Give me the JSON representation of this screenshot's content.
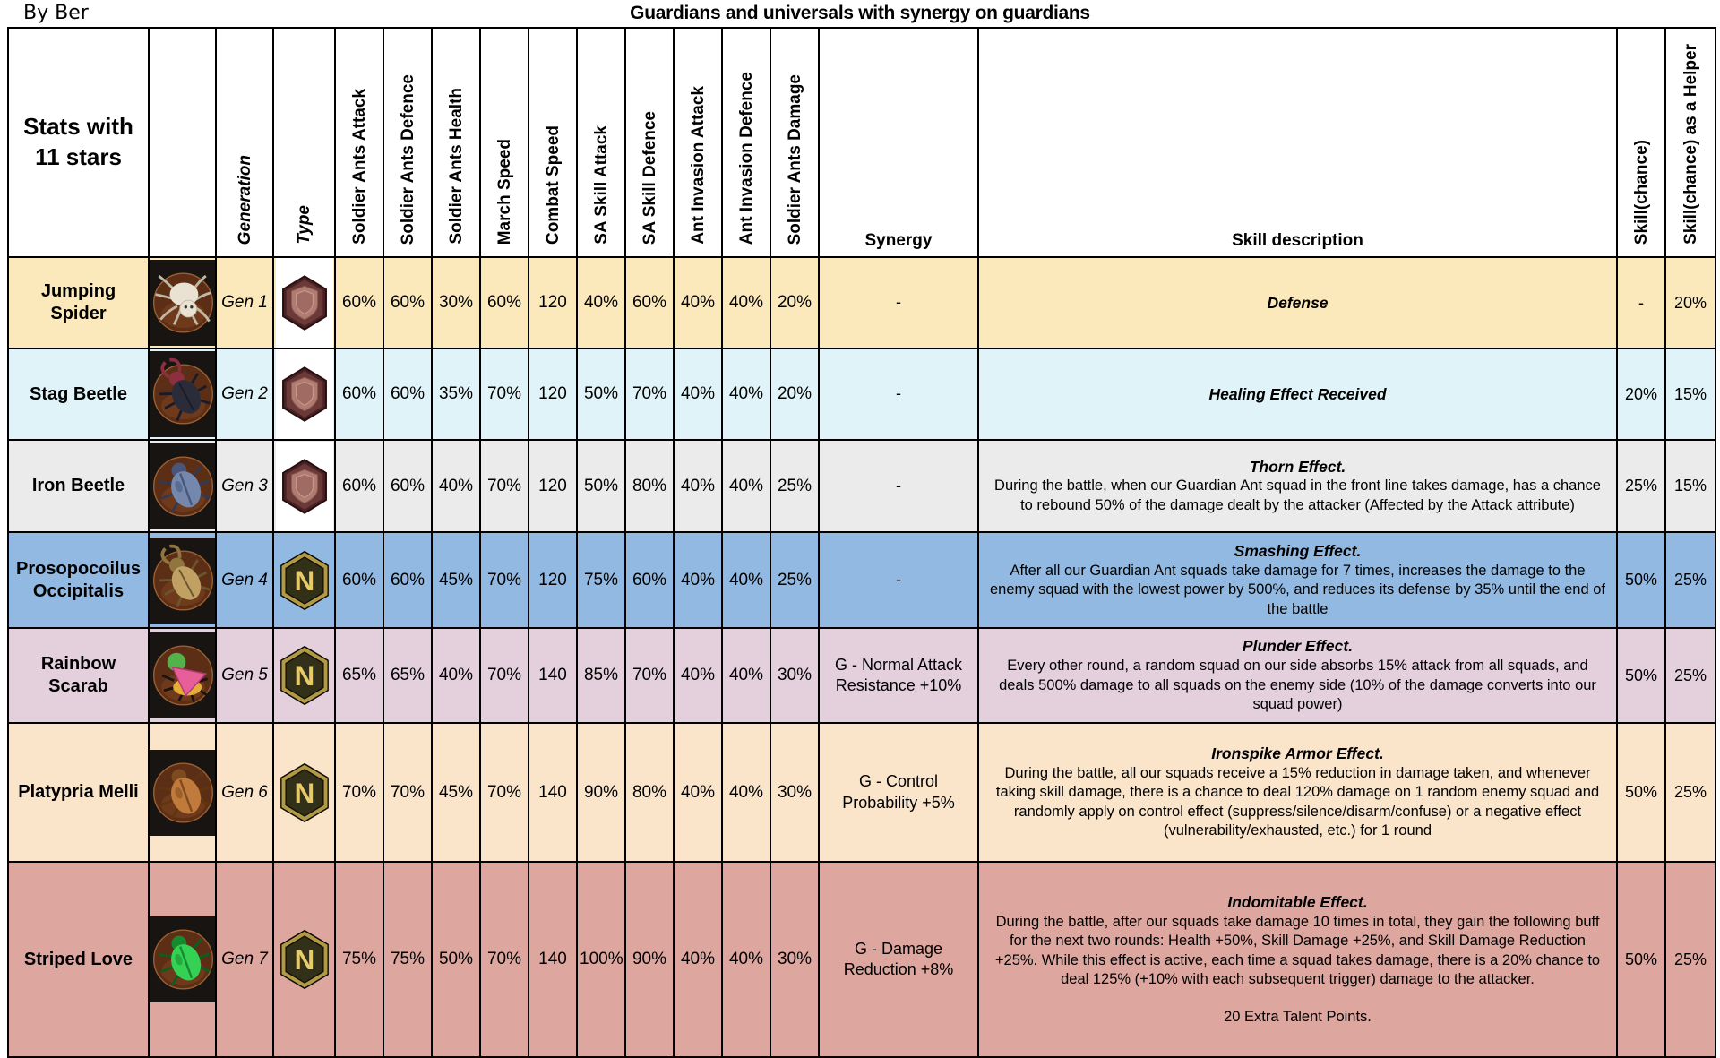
{
  "header": {
    "author": "By Ber",
    "title": "Guardians and universals with synergy on guardians"
  },
  "table": {
    "columns": [
      {
        "key": "name",
        "label": "Stats with\n11 stars",
        "style": "corner"
      },
      {
        "key": "image",
        "label": "",
        "style": "blank"
      },
      {
        "key": "generation",
        "label": "Generation",
        "style": "rotated-italic"
      },
      {
        "key": "type",
        "label": "Type",
        "style": "rotated-italic"
      },
      {
        "key": "sa_attack",
        "label": "Soldier Ants Attack",
        "style": "rotated"
      },
      {
        "key": "sa_defence",
        "label": "Soldier Ants Defence",
        "style": "rotated"
      },
      {
        "key": "sa_health",
        "label": "Soldier Ants Health",
        "style": "rotated"
      },
      {
        "key": "march_speed",
        "label": "March Speed",
        "style": "rotated"
      },
      {
        "key": "combat_speed",
        "label": "Combat Speed",
        "style": "rotated"
      },
      {
        "key": "sa_skill_attack",
        "label": "SA Skill Attack",
        "style": "rotated"
      },
      {
        "key": "sa_skill_defence",
        "label": "SA Skill Defence",
        "style": "rotated"
      },
      {
        "key": "ant_invasion_attack",
        "label": "Ant Invasion Attack",
        "style": "rotated"
      },
      {
        "key": "ant_invasion_defence",
        "label": "Ant Invasion Defence",
        "style": "rotated"
      },
      {
        "key": "sa_damage",
        "label": "Soldier Ants Damage",
        "style": "rotated"
      },
      {
        "key": "synergy",
        "label": "Synergy",
        "style": "bottom"
      },
      {
        "key": "skill_description",
        "label": "Skill description",
        "style": "bottom"
      },
      {
        "key": "skill_chance",
        "label": "Skill(chance)",
        "style": "rotated"
      },
      {
        "key": "skill_chance_helper",
        "label": "Skill(chance) as a Helper",
        "style": "rotated"
      }
    ],
    "rows": [
      {
        "name": "Jumping\nSpider",
        "generation": "Gen 1",
        "type": "Guard",
        "stats": {
          "sa_attack": "60%",
          "sa_defence": "60%",
          "sa_health": "30%",
          "march_speed": "60%",
          "combat_speed": "120",
          "sa_skill_attack": "40%",
          "sa_skill_defence": "60%",
          "ant_invasion_attack": "40%",
          "ant_invasion_defence": "40%",
          "sa_damage": "20%"
        },
        "synergy": "-",
        "skill_title": "Defense",
        "skill_body": "",
        "skill_footer": "",
        "skill_chance": "-",
        "skill_chance_helper": "20%",
        "row_color": "#fce9bb",
        "insect": {
          "kind": "spider",
          "colors": [
            "#e9e2d2",
            "#c2b9a4",
            "#8a6f3c"
          ]
        }
      },
      {
        "name": "Stag Beetle",
        "generation": "Gen 2",
        "type": "Guard",
        "stats": {
          "sa_attack": "60%",
          "sa_defence": "60%",
          "sa_health": "35%",
          "march_speed": "70%",
          "combat_speed": "120",
          "sa_skill_attack": "50%",
          "sa_skill_defence": "70%",
          "ant_invasion_attack": "40%",
          "ant_invasion_defence": "40%",
          "sa_damage": "20%"
        },
        "synergy": "-",
        "skill_title": "Healing Effect Received",
        "skill_body": "",
        "skill_footer": "",
        "skill_chance": "20%",
        "skill_chance_helper": "15%",
        "row_color": "#dff3f8",
        "insect": {
          "kind": "stag",
          "colors": [
            "#2b2c3a",
            "#8c3040",
            "#1a1b26"
          ]
        }
      },
      {
        "name": "Iron Beetle",
        "generation": "Gen 3",
        "type": "Guard",
        "stats": {
          "sa_attack": "60%",
          "sa_defence": "60%",
          "sa_health": "40%",
          "march_speed": "70%",
          "combat_speed": "120",
          "sa_skill_attack": "50%",
          "sa_skill_defence": "80%",
          "ant_invasion_attack": "40%",
          "ant_invasion_defence": "40%",
          "sa_damage": "25%"
        },
        "synergy": "-",
        "skill_title": "Thorn Effect.",
        "skill_body": "During the battle, when our Guardian Ant squad in the front line takes damage, has a chance to rebound 50% of the damage dealt by the attacker (Affected by the Attack attribute)",
        "skill_footer": "",
        "skill_chance": "25%",
        "skill_chance_helper": "15%",
        "row_color": "#ebebeb",
        "insect": {
          "kind": "beetle",
          "colors": [
            "#7487ad",
            "#47567a",
            "#2e3a57"
          ]
        }
      },
      {
        "name": "Prosopocoilus\nOccipitalis",
        "generation": "Gen 4",
        "type": "Universal",
        "stats": {
          "sa_attack": "60%",
          "sa_defence": "60%",
          "sa_health": "45%",
          "march_speed": "70%",
          "combat_speed": "120",
          "sa_skill_attack": "75%",
          "sa_skill_defence": "60%",
          "ant_invasion_attack": "40%",
          "ant_invasion_defence": "40%",
          "sa_damage": "25%"
        },
        "synergy": "-",
        "skill_title": "Smashing Effect.",
        "skill_body": "After all our Guardian Ant squads take damage for 7 times, increases the damage to the enemy squad with the lowest power by 500%, and reduces its defense by 35% until the end of the battle",
        "skill_footer": "",
        "skill_chance": "50%",
        "skill_chance_helper": "25%",
        "row_color": "#92b9e2",
        "insect": {
          "kind": "stag",
          "colors": [
            "#c0a163",
            "#91753f",
            "#6b5530"
          ]
        }
      },
      {
        "name": "Rainbow\nScarab",
        "generation": "Gen 5",
        "type": "Universal",
        "stats": {
          "sa_attack": "65%",
          "sa_defence": "65%",
          "sa_health": "40%",
          "march_speed": "70%",
          "combat_speed": "140",
          "sa_skill_attack": "85%",
          "sa_skill_defence": "70%",
          "ant_invasion_attack": "40%",
          "ant_invasion_defence": "40%",
          "sa_damage": "30%"
        },
        "synergy": "G - Normal Attack\nResistance +10%",
        "skill_title": "Plunder Effect.",
        "skill_body": "Every other round, a random squad on our side absorbs 15% attack from all squads, and deals 500% damage to all squads on the enemy side (10% of the damage converts into our squad power)",
        "skill_footer": "",
        "skill_chance": "50%",
        "skill_chance_helper": "25%",
        "row_color": "#e4cfdd",
        "insect": {
          "kind": "scarab",
          "colors": [
            "#e75f99",
            "#54b24a",
            "#e6ac3a"
          ]
        }
      },
      {
        "name": "Platypria Melli",
        "generation": "Gen 6",
        "type": "Universal",
        "stats": {
          "sa_attack": "70%",
          "sa_defence": "70%",
          "sa_health": "45%",
          "march_speed": "70%",
          "combat_speed": "140",
          "sa_skill_attack": "90%",
          "sa_skill_defence": "80%",
          "ant_invasion_attack": "40%",
          "ant_invasion_defence": "40%",
          "sa_damage": "30%"
        },
        "synergy": "G - Control\nProbability +5%",
        "skill_title": "Ironspike Armor Effect.",
        "skill_body": "During the battle, all our squads receive a 15% reduction in damage taken, and whenever taking skill damage, there is a chance to deal 120% damage on 1 random enemy squad and randomly apply on control effect (suppress/silence/disarm/confuse) or a negative effect (vulnerability/exhausted, etc.) for 1 round",
        "skill_footer": "",
        "skill_chance": "50%",
        "skill_chance_helper": "25%",
        "row_color": "#fae5cb",
        "insect": {
          "kind": "beetle",
          "colors": [
            "#c07a3b",
            "#7e4a1f",
            "#5d350f"
          ]
        }
      },
      {
        "name": "Striped Love",
        "generation": "Gen 7",
        "type": "Universal",
        "stats": {
          "sa_attack": "75%",
          "sa_defence": "75%",
          "sa_health": "50%",
          "march_speed": "70%",
          "combat_speed": "140",
          "sa_skill_attack": "100%",
          "sa_skill_defence": "90%",
          "ant_invasion_attack": "40%",
          "ant_invasion_defence": "40%",
          "sa_damage": "30%"
        },
        "synergy": "G - Damage\nReduction +8%",
        "skill_title": "Indomitable Effect.",
        "skill_body": "During the battle, after our squads take damage 10 times in total, they gain the following buff for the next two rounds: Health +50%, Skill Damage +25%, and Skill Damage Reduction +25%. While this effect is active, each time a squad takes damage, there is a 20% chance to deal 125% (+10% with each subsequent trigger) damage to the attacker.",
        "skill_footer": "20 Extra Talent Points.",
        "skill_chance": "50%",
        "skill_chance_helper": "25%",
        "row_color": "#dda69e",
        "insect": {
          "kind": "beetle",
          "colors": [
            "#35d155",
            "#168a2e",
            "#0d5e1e"
          ]
        }
      }
    ]
  }
}
